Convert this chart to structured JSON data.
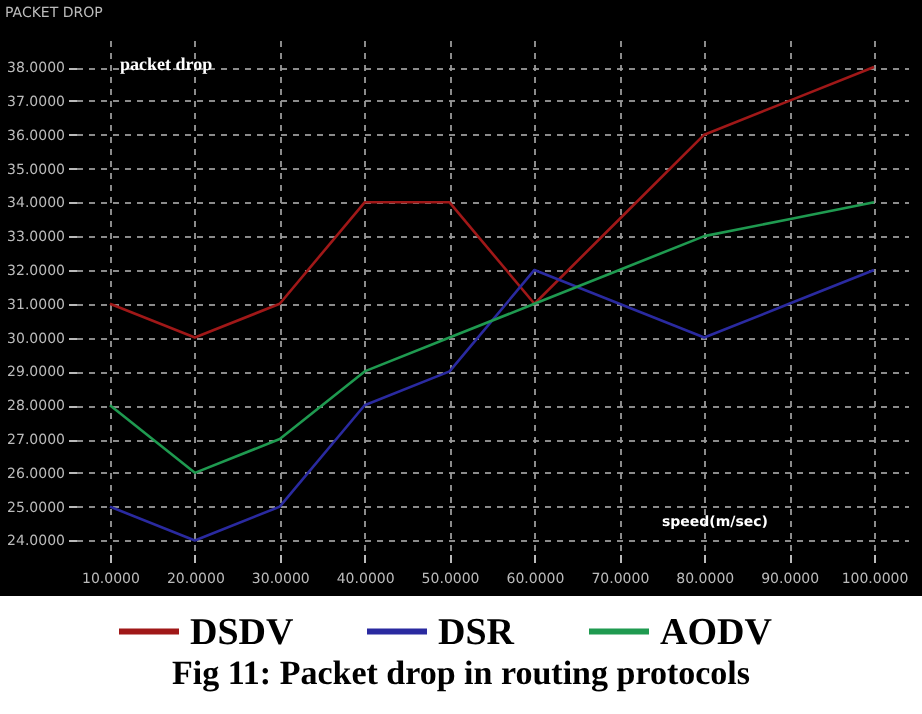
{
  "chart_data": {
    "type": "line",
    "title": "packet drop",
    "ylabel": "PACKET DROP",
    "xlabel": "speed(m/sec)",
    "x": [
      10,
      20,
      30,
      40,
      50,
      60,
      70,
      80,
      90,
      100
    ],
    "xlim": [
      6,
      104
    ],
    "xticks": [
      {
        "value": 10,
        "label": "10.0000"
      },
      {
        "value": 20,
        "label": "20.0000"
      },
      {
        "value": 30,
        "label": "30.0000"
      },
      {
        "value": 40,
        "label": "40.0000"
      },
      {
        "value": 50,
        "label": "50.0000"
      },
      {
        "value": 60,
        "label": "60.0000"
      },
      {
        "value": 70,
        "label": "70.0000"
      },
      {
        "value": 80,
        "label": "80.0000"
      },
      {
        "value": 90,
        "label": "90.0000"
      },
      {
        "value": 100,
        "label": "100.0000"
      }
    ],
    "ylim": [
      23.6,
      38.8
    ],
    "yticks": [
      {
        "value": 24,
        "label": "24.0000"
      },
      {
        "value": 25,
        "label": "25.0000"
      },
      {
        "value": 26,
        "label": "26.0000"
      },
      {
        "value": 27,
        "label": "27.0000"
      },
      {
        "value": 28,
        "label": "28.0000"
      },
      {
        "value": 29,
        "label": "29.0000"
      },
      {
        "value": 30,
        "label": "30.0000"
      },
      {
        "value": 31,
        "label": "31.0000"
      },
      {
        "value": 32,
        "label": "32.0000"
      },
      {
        "value": 33,
        "label": "33.0000"
      },
      {
        "value": 34,
        "label": "34.0000"
      },
      {
        "value": 35,
        "label": "35.0000"
      },
      {
        "value": 36,
        "label": "36.0000"
      },
      {
        "value": 37,
        "label": "37.0000"
      },
      {
        "value": 38,
        "label": "38.0000"
      }
    ],
    "series": [
      {
        "name": "DSDV",
        "color": "#a01818",
        "values": [
          31,
          30,
          31,
          34,
          34,
          31,
          33.5,
          36,
          37,
          38
        ]
      },
      {
        "name": "DSR",
        "color": "#2a2aa0",
        "values": [
          25,
          24,
          25,
          28,
          29,
          32,
          31,
          30,
          31,
          32
        ]
      },
      {
        "name": "AODV",
        "color": "#1f9a50",
        "values": [
          28,
          26,
          27,
          29,
          30,
          31,
          32,
          33,
          33.5,
          34
        ]
      }
    ],
    "grid": true,
    "legend": "bottom",
    "marker": "none",
    "annotations": [
      "Fig 11: Packet drop in routing protocols"
    ]
  }
}
